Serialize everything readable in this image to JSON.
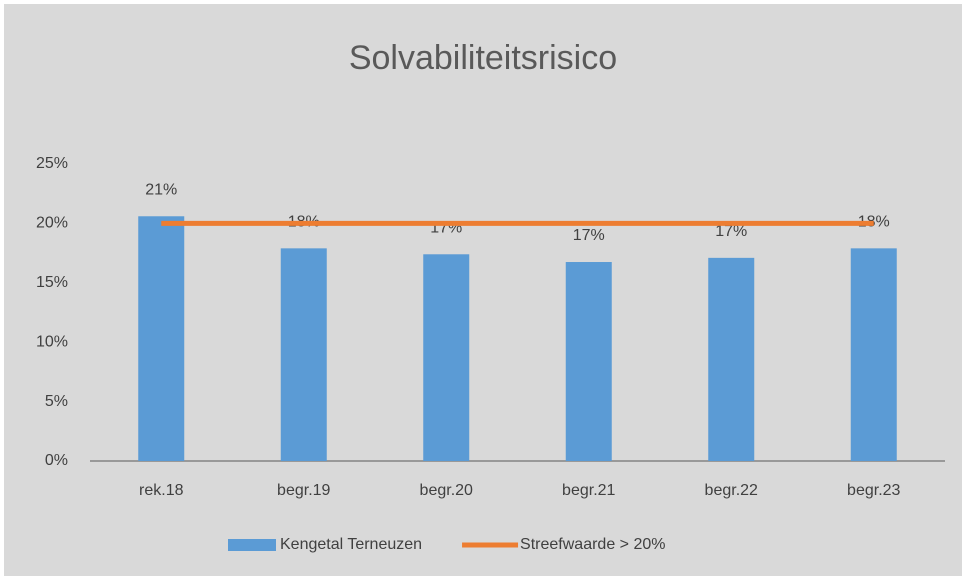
{
  "chart_data": {
    "type": "bar_line",
    "title": "Solvabiliteitsrisico",
    "categories": [
      "rek.18",
      "begr.19",
      "begr.20",
      "begr.21",
      "begr.22",
      "begr.23"
    ],
    "series": [
      {
        "name": "Kengetal Terneuzen",
        "type": "bar",
        "color": "#5b9bd5",
        "values": [
          20.6,
          17.9,
          17.4,
          16.75,
          17.1,
          17.9
        ],
        "value_labels": [
          "21%",
          "18%",
          "17%",
          "17%",
          "17%",
          "18%"
        ]
      },
      {
        "name": "Streefwaarde > 20%",
        "type": "line",
        "color": "#ed7d31",
        "values": [
          20,
          20,
          20,
          20,
          20,
          20
        ]
      }
    ],
    "ylim": [
      0,
      25
    ],
    "yticks": [
      {
        "value": 0,
        "label": "0%"
      },
      {
        "value": 5,
        "label": "5%"
      },
      {
        "value": 10,
        "label": "10%"
      },
      {
        "value": 15,
        "label": "15%"
      },
      {
        "value": 20,
        "label": "20%"
      },
      {
        "value": 25,
        "label": "25%"
      }
    ],
    "legend": "bottom"
  }
}
